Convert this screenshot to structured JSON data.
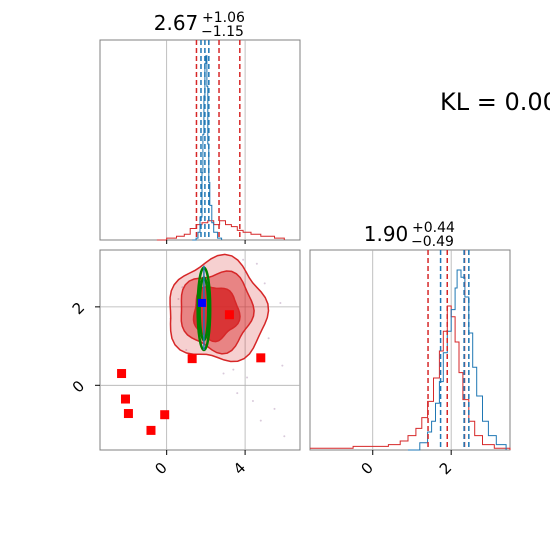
{
  "chart_data": {
    "type": "corner",
    "kl_label": "KL = 0.00",
    "colors": {
      "red": "#d62728",
      "blue": "#1f77b4",
      "green": "#008000",
      "marker_red": "#ff0000",
      "marker_blue": "#0000ff",
      "grid": "#b0b0b0"
    },
    "param1": {
      "xlim": [
        -3.4,
        6.8
      ],
      "ticks": [
        0,
        4
      ],
      "tick_labels": [
        "0",
        "4"
      ],
      "title_center": "2.67",
      "title_plus": "+1.06",
      "title_minus": "−1.15",
      "blue_quantiles": [
        1.75,
        1.95,
        2.15
      ],
      "red_quantiles": [
        1.52,
        2.67,
        3.73
      ],
      "blue_hist": [
        [
          1.3,
          0.0
        ],
        [
          1.5,
          0.01
        ],
        [
          1.6,
          0.04
        ],
        [
          1.7,
          0.12
        ],
        [
          1.8,
          0.35
        ],
        [
          1.85,
          0.55
        ],
        [
          1.9,
          0.75
        ],
        [
          1.95,
          0.92
        ],
        [
          2.0,
          0.96
        ],
        [
          2.05,
          0.8
        ],
        [
          2.1,
          0.5
        ],
        [
          2.15,
          0.3
        ],
        [
          2.2,
          0.18
        ],
        [
          2.3,
          0.09
        ],
        [
          2.4,
          0.04
        ],
        [
          2.6,
          0.01
        ],
        [
          2.8,
          0.0
        ]
      ],
      "red_hist": [
        [
          -0.5,
          0.0
        ],
        [
          0.0,
          0.01
        ],
        [
          0.5,
          0.02
        ],
        [
          0.9,
          0.03
        ],
        [
          1.2,
          0.06
        ],
        [
          1.5,
          0.08
        ],
        [
          1.8,
          0.09
        ],
        [
          2.1,
          0.1
        ],
        [
          2.4,
          0.08
        ],
        [
          2.7,
          0.1
        ],
        [
          3.0,
          0.08
        ],
        [
          3.3,
          0.07
        ],
        [
          3.6,
          0.05
        ],
        [
          3.9,
          0.04
        ],
        [
          4.3,
          0.03
        ],
        [
          4.8,
          0.02
        ],
        [
          5.5,
          0.01
        ],
        [
          6.0,
          0.0
        ]
      ]
    },
    "param2": {
      "ylim": [
        -1.65,
        3.45
      ],
      "xlim": [
        -1.6,
        3.5
      ],
      "ticks": [
        0,
        2
      ],
      "tick_labels": [
        "0",
        "2"
      ],
      "title_center": "1.90",
      "title_plus": "+0.44",
      "title_minus": "−0.49",
      "blue_quantiles": [
        1.73,
        2.33,
        2.45
      ],
      "red_quantiles": [
        1.41,
        1.9,
        2.34
      ],
      "blue_hist": [
        [
          0.9,
          0.0
        ],
        [
          1.2,
          0.04
        ],
        [
          1.4,
          0.1
        ],
        [
          1.5,
          0.16
        ],
        [
          1.6,
          0.26
        ],
        [
          1.7,
          0.38
        ],
        [
          1.8,
          0.54
        ],
        [
          1.9,
          0.66
        ],
        [
          2.0,
          0.78
        ],
        [
          2.1,
          0.9
        ],
        [
          2.15,
          1.0
        ],
        [
          2.25,
          0.96
        ],
        [
          2.35,
          0.85
        ],
        [
          2.45,
          0.65
        ],
        [
          2.55,
          0.46
        ],
        [
          2.65,
          0.3
        ],
        [
          2.8,
          0.16
        ],
        [
          2.95,
          0.08
        ],
        [
          3.15,
          0.03
        ],
        [
          3.4,
          0.0
        ]
      ],
      "red_hist": [
        [
          -1.6,
          0.01
        ],
        [
          -1.0,
          0.01
        ],
        [
          -0.5,
          0.02
        ],
        [
          0.0,
          0.02
        ],
        [
          0.4,
          0.03
        ],
        [
          0.7,
          0.05
        ],
        [
          0.9,
          0.08
        ],
        [
          1.1,
          0.12
        ],
        [
          1.25,
          0.18
        ],
        [
          1.4,
          0.27
        ],
        [
          1.55,
          0.4
        ],
        [
          1.7,
          0.55
        ],
        [
          1.8,
          0.66
        ],
        [
          1.9,
          0.8
        ],
        [
          2.0,
          0.74
        ],
        [
          2.1,
          0.6
        ],
        [
          2.2,
          0.43
        ],
        [
          2.3,
          0.28
        ],
        [
          2.45,
          0.16
        ],
        [
          2.6,
          0.08
        ],
        [
          2.8,
          0.03
        ],
        [
          3.1,
          0.01
        ],
        [
          3.5,
          0.0
        ]
      ]
    },
    "red_contours": [
      {
        "level": "outer",
        "center": [
          2.6,
          1.9
        ],
        "rx": 2.5,
        "ry": 1.3,
        "opacity": 0.22
      },
      {
        "level": "middle",
        "center": [
          2.55,
          1.9
        ],
        "rx": 1.85,
        "ry": 1.0,
        "opacity": 0.45
      },
      {
        "level": "inner",
        "center": [
          2.5,
          1.85
        ],
        "rx": 1.15,
        "ry": 0.68,
        "opacity": 0.85
      }
    ],
    "green_contours": [
      {
        "center": [
          1.9,
          1.95
        ],
        "rx": 0.32,
        "ry": 1.05
      },
      {
        "center": [
          1.9,
          1.95
        ],
        "rx": 0.22,
        "ry": 0.8
      }
    ],
    "red_squares": [
      [
        -2.3,
        0.3
      ],
      [
        -2.1,
        -0.35
      ],
      [
        -1.95,
        -0.72
      ],
      [
        -0.8,
        -1.15
      ],
      [
        -0.1,
        -0.75
      ],
      [
        1.3,
        0.68
      ],
      [
        3.2,
        1.8
      ],
      [
        4.8,
        0.7
      ]
    ],
    "blue_square": [
      1.8,
      2.1
    ],
    "scatter_points": [
      [
        5.5,
        -0.6
      ],
      [
        6.0,
        -1.3
      ],
      [
        4.8,
        -0.9
      ],
      [
        3.4,
        0.4
      ],
      [
        4.1,
        0.2
      ],
      [
        5.2,
        1.2
      ],
      [
        0.2,
        1.7
      ],
      [
        0.8,
        2.5
      ],
      [
        5.8,
        2.1
      ],
      [
        3.6,
        -0.2
      ],
      [
        4.4,
        -0.4
      ],
      [
        2.9,
        0.3
      ],
      [
        5.9,
        0.5
      ],
      [
        1.0,
        0.9
      ],
      [
        5.0,
        2.6
      ],
      [
        4.6,
        3.1
      ],
      [
        3.9,
        3.2
      ],
      [
        0.6,
        2.2
      ]
    ]
  }
}
